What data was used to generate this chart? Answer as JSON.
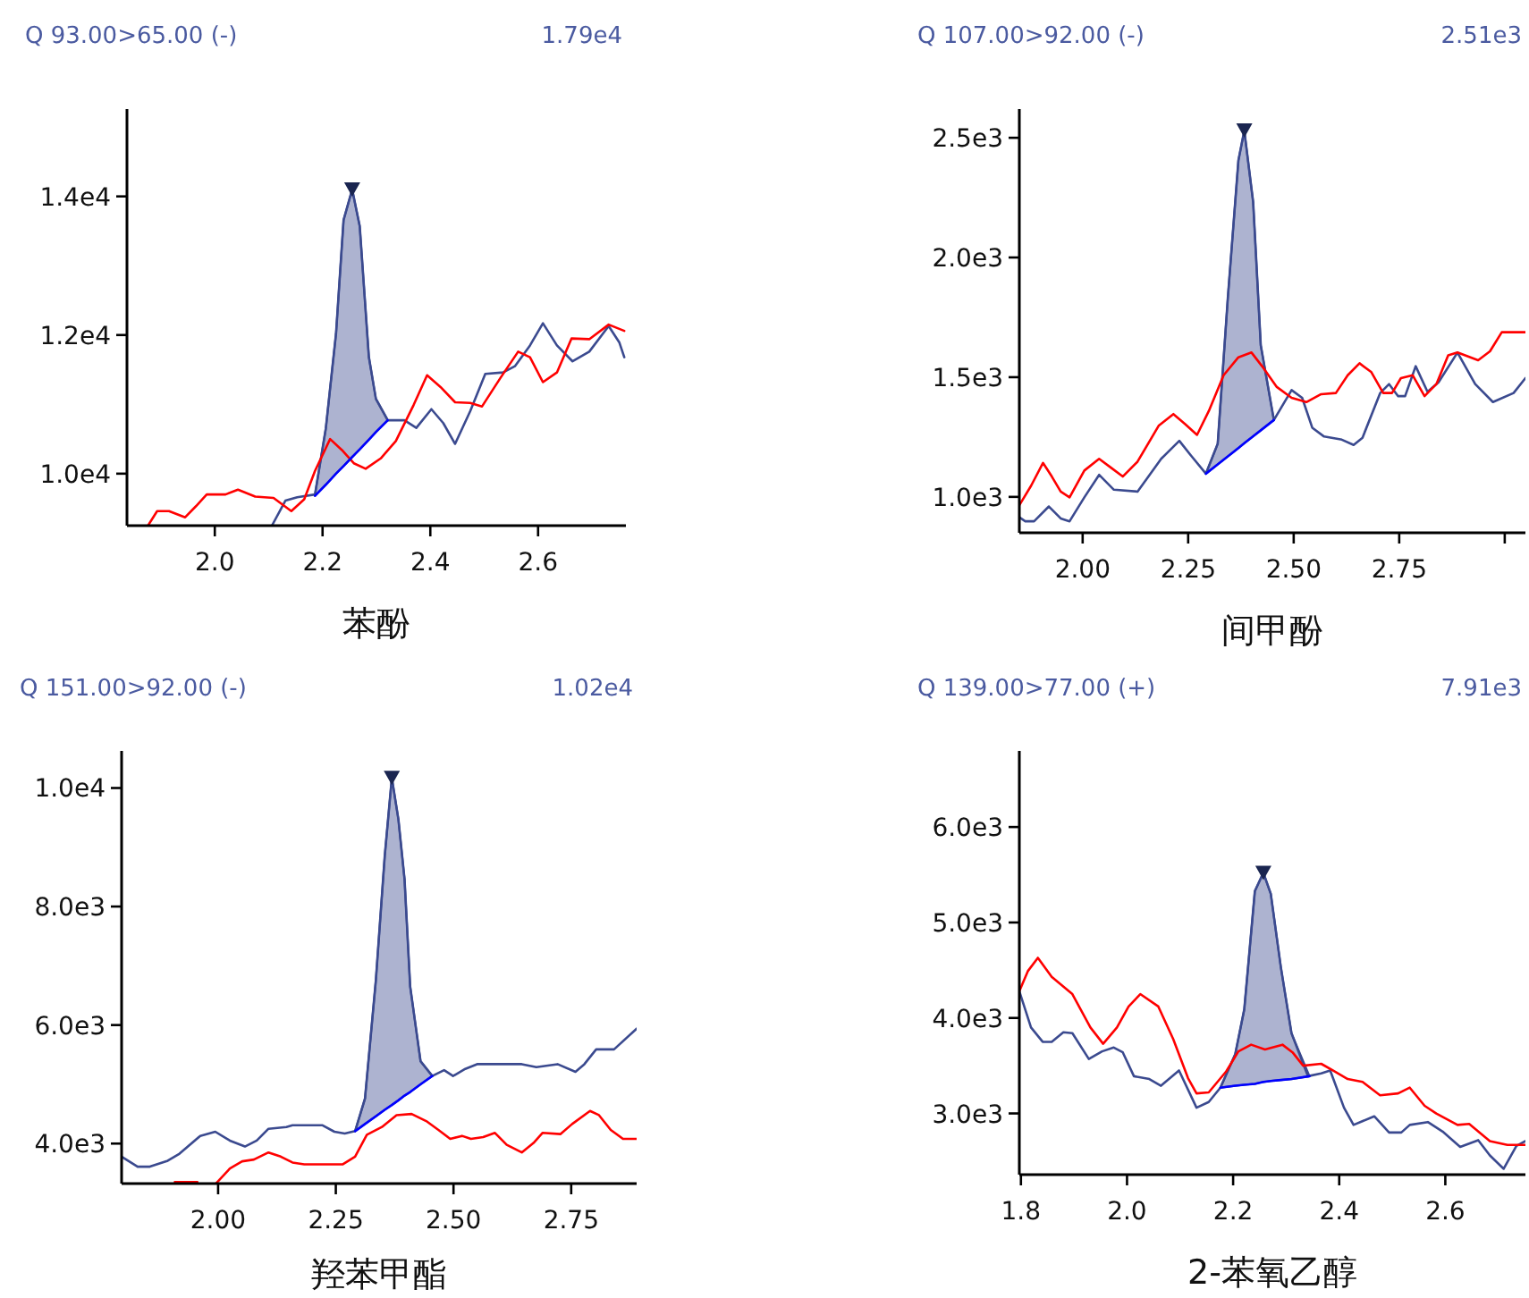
{
  "chart_data": [
    {
      "type": "line",
      "title": "Q 93.00>65.00 (-)",
      "annotations": [
        "1.79e4"
      ],
      "xlabel": "苯酚",
      "xlim": [
        1.837,
        2.763
      ],
      "ylim": [
        9250,
        15260
      ],
      "xticks": [
        {
          "value": 2.0,
          "label": "2.0"
        },
        {
          "value": 2.2,
          "label": "2.2"
        },
        {
          "value": 2.4,
          "label": "2.4"
        },
        {
          "value": 2.6,
          "label": "2.6"
        }
      ],
      "yticks": [
        {
          "value": 10000,
          "label": "1.0e4"
        },
        {
          "value": 12000,
          "label": "1.2e4"
        },
        {
          "value": 14000,
          "label": "1.4e4"
        }
      ],
      "series": [
        {
          "color": "#3b4a8f",
          "x": [
            2.106,
            2.131,
            2.153,
            2.186,
            2.206,
            2.225,
            2.239,
            2.255,
            2.269,
            2.286,
            2.299,
            2.321,
            2.352,
            2.374,
            2.402,
            2.424,
            2.446,
            2.474,
            2.502,
            2.535,
            2.557,
            2.585,
            2.609,
            2.635,
            2.664,
            2.695,
            2.731,
            2.751,
            2.76
          ],
          "values": [
            9250,
            9610,
            9660,
            9700,
            10650,
            12020,
            13660,
            14100,
            13570,
            11680,
            11080,
            10770,
            10770,
            10660,
            10930,
            10730,
            10430,
            10900,
            11440,
            11460,
            11550,
            11850,
            12170,
            11850,
            11620,
            11760,
            12130,
            11890,
            11680
          ]
        },
        {
          "color": "#ff0000",
          "x": [
            1.876,
            1.893,
            1.915,
            1.945,
            1.965,
            1.985,
            2.02,
            2.043,
            2.075,
            2.109,
            2.142,
            2.166,
            2.186,
            2.214,
            2.236,
            2.258,
            2.28,
            2.308,
            2.336,
            2.369,
            2.394,
            2.419,
            2.446,
            2.474,
            2.496,
            2.53,
            2.563,
            2.585,
            2.609,
            2.635,
            2.662,
            2.695,
            2.731,
            2.76
          ],
          "values": [
            9250,
            9460,
            9460,
            9370,
            9530,
            9700,
            9700,
            9770,
            9670,
            9650,
            9460,
            9630,
            10040,
            10500,
            10340,
            10150,
            10070,
            10220,
            10470,
            10990,
            11420,
            11250,
            11030,
            11020,
            10970,
            11380,
            11760,
            11680,
            11320,
            11460,
            11950,
            11940,
            12150,
            12060
          ]
        },
        {
          "color": "#0000ff",
          "x": [
            2.186,
            2.206,
            2.225,
            2.239,
            2.255,
            2.269,
            2.286,
            2.299,
            2.321
          ],
          "values": [
            9680,
            9840,
            10000,
            10110,
            10240,
            10350,
            10490,
            10600,
            10770
          ],
          "lower": [
            9680,
            9840,
            10000,
            10110,
            10240,
            10350,
            10490,
            10600,
            10770
          ],
          "upper": [
            9700,
            10650,
            12020,
            13660,
            14100,
            13570,
            11680,
            11080,
            10770
          ]
        },
        {
          "type": "scatter",
          "marker": "triangle",
          "color": "#1a2550",
          "x": [
            2.255
          ],
          "values": [
            14100
          ]
        }
      ]
    },
    {
      "type": "line",
      "title": "Q 107.00>92.00 (-)",
      "annotations": [
        "2.51e3"
      ],
      "xlabel": "间甲酚",
      "xlim": [
        1.85,
        3.049
      ],
      "ylim": [
        850,
        2620
      ],
      "xticks": [
        {
          "value": 2.0,
          "label": "2.00"
        },
        {
          "value": 2.25,
          "label": "2.25"
        },
        {
          "value": 2.5,
          "label": "2.50"
        },
        {
          "value": 2.75,
          "label": "2.75"
        },
        {
          "value": 3.0,
          "label": null
        }
      ],
      "yticks": [
        {
          "value": 1000,
          "label": "1.0e3"
        },
        {
          "value": 1500,
          "label": "1.5e3"
        },
        {
          "value": 2000,
          "label": "2.0e3"
        },
        {
          "value": 2500,
          "label": "2.5e3"
        }
      ],
      "series": [
        {
          "color": "#3b4a8f",
          "x": [
            1.85,
            1.864,
            1.885,
            1.92,
            1.948,
            1.969,
            2.004,
            2.039,
            2.074,
            2.13,
            2.186,
            2.229,
            2.257,
            2.292,
            2.32,
            2.344,
            2.369,
            2.383,
            2.404,
            2.422,
            2.453,
            2.495,
            2.52,
            2.544,
            2.572,
            2.614,
            2.642,
            2.663,
            2.705,
            2.726,
            2.747,
            2.764,
            2.789,
            2.817,
            2.843,
            2.888,
            2.93,
            2.972,
            3.021,
            3.049
          ],
          "values": [
            915,
            898,
            898,
            960,
            910,
            898,
            998,
            1092,
            1030,
            1022,
            1159,
            1234,
            1172,
            1097,
            1222,
            1832,
            2405,
            2530,
            2231,
            1633,
            1321,
            1446,
            1414,
            1289,
            1252,
            1239,
            1217,
            1247,
            1434,
            1471,
            1421,
            1421,
            1546,
            1439,
            1478,
            1603,
            1471,
            1396,
            1434,
            1496
          ]
        },
        {
          "color": "#ff0000",
          "x": [
            1.85,
            1.878,
            1.906,
            1.927,
            1.948,
            1.969,
            2.004,
            2.039,
            2.067,
            2.095,
            2.13,
            2.18,
            2.215,
            2.243,
            2.271,
            2.299,
            2.334,
            2.369,
            2.4,
            2.425,
            2.46,
            2.495,
            2.53,
            2.565,
            2.6,
            2.628,
            2.656,
            2.684,
            2.712,
            2.733,
            2.754,
            2.782,
            2.81,
            2.838,
            2.866,
            2.888,
            2.937,
            2.965,
            2.993,
            3.049
          ],
          "values": [
            965,
            1047,
            1142,
            1085,
            1022,
            998,
            1110,
            1159,
            1122,
            1085,
            1147,
            1297,
            1346,
            1304,
            1259,
            1359,
            1508,
            1583,
            1603,
            1546,
            1459,
            1414,
            1396,
            1429,
            1434,
            1508,
            1558,
            1521,
            1434,
            1434,
            1496,
            1508,
            1421,
            1471,
            1591,
            1603,
            1571,
            1608,
            1688,
            1688
          ]
        },
        {
          "color": "#0000ff",
          "x": [
            2.292,
            2.32,
            2.344,
            2.369,
            2.383,
            2.404,
            2.422,
            2.453
          ],
          "values": [
            1097,
            1136,
            1169,
            1204,
            1224,
            1253,
            1278,
            1321
          ],
          "lower": [
            1097,
            1136,
            1169,
            1204,
            1224,
            1253,
            1278,
            1321
          ],
          "upper": [
            1097,
            1222,
            1832,
            2405,
            2530,
            2231,
            1633,
            1321
          ]
        },
        {
          "type": "scatter",
          "marker": "triangle",
          "color": "#1a2550",
          "x": [
            2.383
          ],
          "values": [
            2530
          ]
        }
      ]
    },
    {
      "type": "line",
      "title": "Q 151.00>92.00 (-)",
      "annotations": [
        "1.02e4"
      ],
      "xlabel": "羟苯甲酯",
      "xlim": [
        1.795,
        2.889
      ],
      "ylim": [
        3325,
        10626
      ],
      "xticks": [
        {
          "value": 2.0,
          "label": "2.00"
        },
        {
          "value": 2.25,
          "label": "2.25"
        },
        {
          "value": 2.5,
          "label": "2.50"
        },
        {
          "value": 2.75,
          "label": "2.75"
        }
      ],
      "yticks": [
        {
          "value": 4000,
          "label": "4.0e3"
        },
        {
          "value": 6000,
          "label": "6.0e3"
        },
        {
          "value": 8000,
          "label": "8.0e3"
        },
        {
          "value": 10000,
          "label": "1.0e4"
        }
      ],
      "series": [
        {
          "color": "#3b4a8f",
          "x": [
            1.795,
            1.829,
            1.855,
            1.893,
            1.918,
            1.962,
            1.994,
            2.025,
            2.057,
            2.082,
            2.107,
            2.145,
            2.158,
            2.221,
            2.247,
            2.269,
            2.291,
            2.312,
            2.335,
            2.354,
            2.369,
            2.383,
            2.396,
            2.408,
            2.43,
            2.455,
            2.48,
            2.499,
            2.525,
            2.55,
            2.588,
            2.645,
            2.676,
            2.721,
            2.759,
            2.778,
            2.803,
            2.841,
            2.889
          ],
          "values": [
            3780,
            3610,
            3610,
            3710,
            3830,
            4130,
            4200,
            4050,
            3950,
            4050,
            4250,
            4280,
            4310,
            4310,
            4200,
            4170,
            4210,
            4760,
            6750,
            8860,
            10170,
            9470,
            8460,
            6650,
            5390,
            5140,
            5240,
            5140,
            5260,
            5340,
            5340,
            5340,
            5290,
            5340,
            5210,
            5340,
            5590,
            5590,
            5940
          ]
        },
        {
          "color": "#ff0000",
          "x": [
            1.908,
            1.956,
            1.975,
            1.996,
            2.025,
            2.051,
            2.076,
            2.107,
            2.133,
            2.158,
            2.183,
            2.265,
            2.291,
            2.316,
            2.348,
            2.379,
            2.411,
            2.442,
            2.468,
            2.493,
            2.518,
            2.537,
            2.563,
            2.588,
            2.613,
            2.645,
            2.67,
            2.689,
            2.727,
            2.752,
            2.79,
            2.809,
            2.834,
            2.86,
            2.889
          ],
          "values": [
            3350,
            3350,
            null,
            3330,
            3580,
            3700,
            3730,
            3850,
            3780,
            3680,
            3650,
            3650,
            3780,
            4150,
            4280,
            4480,
            4500,
            4380,
            4230,
            4080,
            4130,
            4080,
            4110,
            4180,
            3980,
            3850,
            4010,
            4180,
            4160,
            4330,
            4550,
            4480,
            4230,
            4080,
            4080
          ]
        },
        {
          "color": "#0000ff",
          "x": [
            2.291,
            2.312,
            2.335,
            2.354,
            2.369,
            2.383,
            2.396,
            2.408,
            2.43,
            2.455
          ],
          "values": [
            4210,
            4330,
            4460,
            4570,
            4650,
            4730,
            4810,
            4870,
            5000,
            5140
          ],
          "lower": [
            4210,
            4330,
            4460,
            4570,
            4650,
            4730,
            4810,
            4870,
            5000,
            5140
          ],
          "upper": [
            4210,
            4760,
            6750,
            8860,
            10170,
            9470,
            8460,
            6650,
            5390,
            5140
          ]
        },
        {
          "type": "scatter",
          "marker": "triangle",
          "color": "#1a2550",
          "x": [
            2.369
          ],
          "values": [
            10170
          ]
        }
      ]
    },
    {
      "type": "line",
      "title": "Q 139.00>77.00 (+)",
      "annotations": [
        "7.91e3"
      ],
      "xlabel": "2-苯氧乙醇",
      "xlim": [
        1.797,
        2.751
      ],
      "ylim": [
        2359,
        6797
      ],
      "xticks": [
        {
          "value": 1.8,
          "label": "1.8"
        },
        {
          "value": 2.0,
          "label": "2.0"
        },
        {
          "value": 2.2,
          "label": "2.2"
        },
        {
          "value": 2.4,
          "label": "2.4"
        },
        {
          "value": 2.6,
          "label": "2.6"
        }
      ],
      "yticks": [
        {
          "value": 3000,
          "label": "3.0e3"
        },
        {
          "value": 4000,
          "label": "4.0e3"
        },
        {
          "value": 5000,
          "label": "5.0e3"
        },
        {
          "value": 6000,
          "label": "6.0e3"
        }
      ],
      "series": [
        {
          "color": "#3b4a8f",
          "x": [
            1.797,
            1.819,
            1.841,
            1.858,
            1.88,
            1.897,
            1.928,
            1.953,
            1.975,
            1.992,
            2.013,
            2.042,
            2.064,
            2.098,
            2.131,
            2.154,
            2.176,
            2.204,
            2.221,
            2.241,
            2.257,
            2.271,
            2.29,
            2.31,
            2.341,
            2.366,
            2.383,
            2.409,
            2.427,
            2.466,
            2.494,
            2.517,
            2.533,
            2.567,
            2.595,
            2.628,
            2.662,
            2.684,
            2.71,
            2.734,
            2.751
          ],
          "values": [
            4280,
            3900,
            3750,
            3750,
            3850,
            3840,
            3570,
            3650,
            3690,
            3640,
            3390,
            3360,
            3290,
            3450,
            3060,
            3120,
            3270,
            3620,
            4090,
            5330,
            5520,
            5300,
            4530,
            3840,
            3390,
            3420,
            3450,
            3060,
            2880,
            2970,
            2800,
            2800,
            2880,
            2910,
            2810,
            2650,
            2720,
            2560,
            2420,
            2660,
            2710
          ]
        },
        {
          "color": "#ff0000",
          "x": [
            1.797,
            1.813,
            1.832,
            1.858,
            1.897,
            1.931,
            1.955,
            1.981,
            2.003,
            2.025,
            2.059,
            2.087,
            2.115,
            2.131,
            2.154,
            2.187,
            2.21,
            2.234,
            2.26,
            2.293,
            2.312,
            2.332,
            2.366,
            2.388,
            2.416,
            2.444,
            2.477,
            2.511,
            2.533,
            2.561,
            2.583,
            2.623,
            2.645,
            2.684,
            2.717,
            2.751
          ],
          "values": [
            4280,
            4490,
            4630,
            4430,
            4250,
            3900,
            3730,
            3900,
            4120,
            4250,
            4120,
            3780,
            3370,
            3210,
            3220,
            3440,
            3650,
            3720,
            3670,
            3720,
            3640,
            3500,
            3520,
            3450,
            3360,
            3330,
            3190,
            3210,
            3270,
            3080,
            3000,
            2880,
            2890,
            2710,
            2670,
            2670
          ]
        },
        {
          "color": "#0000ff",
          "x": [
            2.176,
            2.204,
            2.221,
            2.241,
            2.257,
            2.271,
            2.29,
            2.31,
            2.344
          ],
          "values": [
            3270,
            3290,
            3300,
            3310,
            3330,
            3340,
            3350,
            3360,
            3390
          ],
          "lower": [
            3270,
            3290,
            3300,
            3310,
            3330,
            3340,
            3350,
            3360,
            3390
          ],
          "upper": [
            3270,
            3620,
            4090,
            5330,
            5520,
            5300,
            4530,
            3840,
            3390
          ]
        },
        {
          "type": "scatter",
          "marker": "triangle",
          "color": "#1a2550",
          "x": [
            2.257
          ],
          "values": [
            5520
          ]
        }
      ]
    }
  ]
}
